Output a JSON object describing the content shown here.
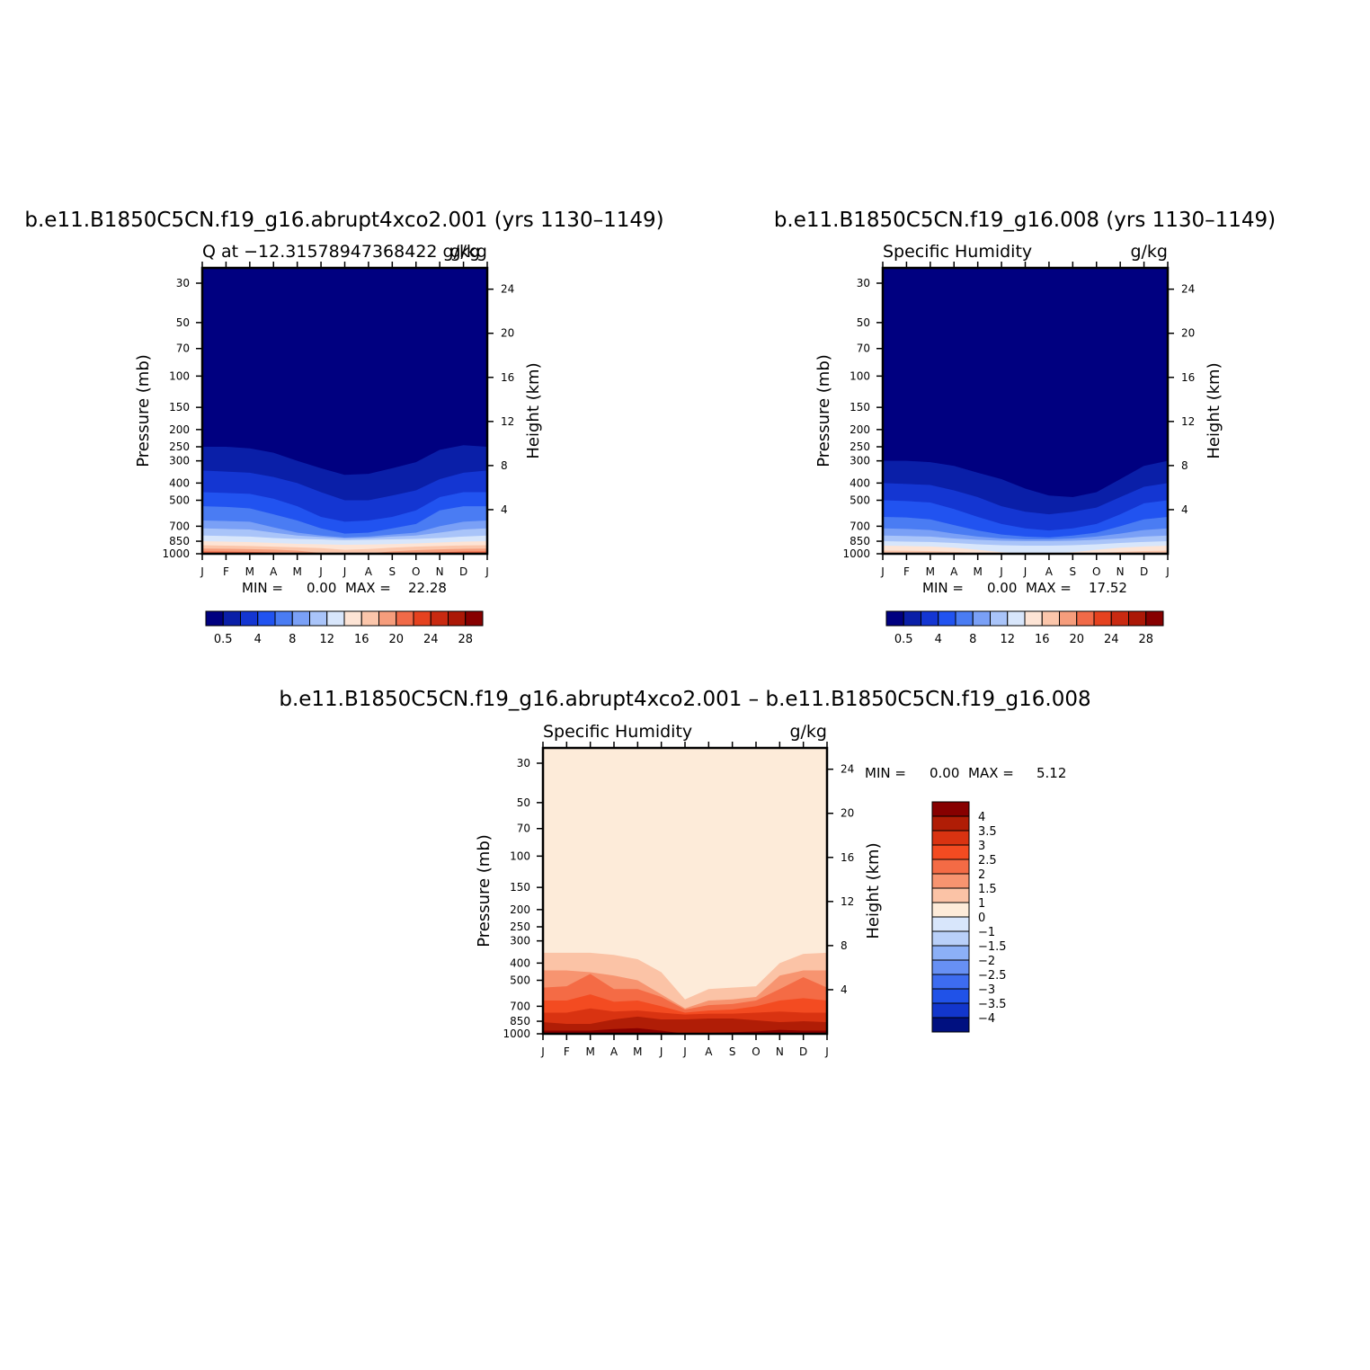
{
  "chart_data": [
    {
      "type": "heatmap",
      "title": "b.e11.B1850C5CN.f19_g16.abrupt4xco2.001 (yrs 1130–1149)",
      "left_string": "Q at −12.31578947368422 g/kg",
      "right_string": "g/kg",
      "ylabel": "Pressure (mb)",
      "ylabel_right": "Height (km)",
      "x_ticks": [
        "J",
        "F",
        "M",
        "A",
        "M",
        "J",
        "J",
        "A",
        "S",
        "O",
        "N",
        "D",
        "J"
      ],
      "y_ticks": [
        "30",
        "50",
        "70",
        "100",
        "150",
        "200",
        "250",
        "300",
        "400",
        "500",
        "700",
        "850",
        "1000"
      ],
      "y_values": [
        30,
        50,
        70,
        100,
        150,
        200,
        250,
        300,
        400,
        500,
        700,
        850,
        1000
      ],
      "y_right_ticks": [
        "24",
        "20",
        "16",
        "12",
        "8",
        "4"
      ],
      "y_right_values": [
        24,
        20,
        16,
        12,
        8,
        4
      ],
      "min_label": "MIN =",
      "min_value": "0.00",
      "max_label": "MAX =",
      "max_value": "22.28",
      "colorbar_labels": [
        "0.5",
        "4",
        "8",
        "12",
        "16",
        "20",
        "24",
        "28"
      ],
      "boundaries_pressure": [
        [
          250,
          250,
          255,
          270,
          300,
          330,
          360,
          355,
          330,
          305,
          260,
          245,
          250
        ],
        [
          340,
          345,
          350,
          370,
          400,
          450,
          500,
          500,
          470,
          440,
          380,
          350,
          340
        ],
        [
          450,
          455,
          460,
          490,
          540,
          620,
          660,
          650,
          620,
          570,
          480,
          450,
          450
        ],
        [
          540,
          545,
          555,
          600,
          650,
          720,
          770,
          760,
          720,
          680,
          570,
          540,
          540
        ],
        [
          650,
          655,
          660,
          710,
          760,
          790,
          810,
          800,
          780,
          760,
          700,
          660,
          650
        ],
        [
          720,
          725,
          730,
          760,
          790,
          805,
          820,
          815,
          800,
          790,
          760,
          730,
          720
        ],
        [
          790,
          795,
          800,
          815,
          825,
          830,
          840,
          835,
          830,
          825,
          815,
          800,
          790
        ],
        [
          850,
          855,
          860,
          870,
          880,
          885,
          890,
          888,
          882,
          875,
          865,
          855,
          850
        ],
        [
          895,
          900,
          905,
          912,
          920,
          930,
          950,
          940,
          925,
          912,
          905,
          898,
          895
        ],
        [
          935,
          938,
          942,
          948,
          960,
          990,
          1000,
          995,
          970,
          955,
          945,
          938,
          935
        ],
        [
          970,
          972,
          975,
          982,
          995,
          1000,
          1000,
          1000,
          1000,
          992,
          980,
          972,
          970
        ]
      ]
    },
    {
      "type": "heatmap",
      "title": "b.e11.B1850C5CN.f19_g16.008 (yrs 1130–1149)",
      "left_string": "Specific Humidity",
      "right_string": "g/kg",
      "ylabel": "Pressure (mb)",
      "ylabel_right": "Height (km)",
      "x_ticks": [
        "J",
        "F",
        "M",
        "A",
        "M",
        "J",
        "J",
        "A",
        "S",
        "O",
        "N",
        "D",
        "J"
      ],
      "y_ticks": [
        "30",
        "50",
        "70",
        "100",
        "150",
        "200",
        "250",
        "300",
        "400",
        "500",
        "700",
        "850",
        "1000"
      ],
      "y_values": [
        30,
        50,
        70,
        100,
        150,
        200,
        250,
        300,
        400,
        500,
        700,
        850,
        1000
      ],
      "y_right_ticks": [
        "24",
        "20",
        "16",
        "12",
        "8",
        "4"
      ],
      "y_right_values": [
        24,
        20,
        16,
        12,
        8,
        4
      ],
      "min_label": "MIN =",
      "min_value": "0.00",
      "max_label": "MAX =",
      "max_value": "17.52",
      "colorbar_labels": [
        "0.5",
        "4",
        "8",
        "12",
        "16",
        "20",
        "24",
        "28"
      ],
      "boundaries_pressure": [
        [
          300,
          300,
          305,
          320,
          350,
          380,
          430,
          470,
          480,
          450,
          380,
          320,
          300
        ],
        [
          400,
          405,
          410,
          440,
          480,
          540,
          580,
          600,
          580,
          550,
          480,
          420,
          400
        ],
        [
          500,
          505,
          515,
          560,
          620,
          680,
          720,
          740,
          720,
          680,
          600,
          520,
          500
        ],
        [
          620,
          625,
          640,
          690,
          740,
          780,
          800,
          810,
          790,
          760,
          700,
          640,
          620
        ],
        [
          720,
          725,
          735,
          770,
          800,
          820,
          830,
          830,
          820,
          800,
          770,
          735,
          720
        ],
        [
          790,
          795,
          800,
          820,
          835,
          845,
          850,
          850,
          845,
          835,
          820,
          800,
          790
        ],
        [
          850,
          855,
          858,
          870,
          885,
          895,
          900,
          900,
          895,
          885,
          870,
          858,
          850
        ],
        [
          900,
          905,
          910,
          925,
          950,
          980,
          1000,
          1000,
          980,
          950,
          925,
          910,
          900
        ],
        [
          960,
          962,
          965,
          975,
          990,
          1000,
          1000,
          1000,
          1000,
          990,
          975,
          965,
          960
        ],
        [
          990,
          992,
          995,
          1000,
          1000,
          1000,
          1000,
          1000,
          1000,
          1000,
          998,
          993,
          990
        ]
      ]
    },
    {
      "type": "heatmap",
      "title": "b.e11.B1850C5CN.f19_g16.abrupt4xco2.001 – b.e11.B1850C5CN.f19_g16.008",
      "left_string": "Specific Humidity",
      "right_string": "g/kg",
      "ylabel": "Pressure (mb)",
      "ylabel_right": "Height (km)",
      "x_ticks": [
        "J",
        "F",
        "M",
        "A",
        "M",
        "J",
        "J",
        "A",
        "S",
        "O",
        "N",
        "D",
        "J"
      ],
      "y_ticks": [
        "30",
        "50",
        "70",
        "100",
        "150",
        "200",
        "250",
        "300",
        "400",
        "500",
        "700",
        "850",
        "1000"
      ],
      "y_values": [
        30,
        50,
        70,
        100,
        150,
        200,
        250,
        300,
        400,
        500,
        700,
        850,
        1000
      ],
      "y_right_ticks": [
        "24",
        "20",
        "16",
        "12",
        "8",
        "4"
      ],
      "y_right_values": [
        24,
        20,
        16,
        12,
        8,
        4
      ],
      "min_label": "MIN =",
      "min_value": "0.00",
      "max_label": "MAX =",
      "max_value": "5.12",
      "colorbar_labels": [
        "4",
        "3.5",
        "3",
        "2.5",
        "2",
        "1.5",
        "1",
        "0",
        "−1",
        "−1.5",
        "−2",
        "−2.5",
        "−3",
        "−3.5",
        "−4"
      ],
      "boundaries_pressure": [
        [
          350,
          350,
          350,
          360,
          380,
          450,
          640,
          560,
          550,
          540,
          400,
          355,
          350
        ],
        [
          440,
          440,
          450,
          470,
          500,
          600,
          720,
          650,
          640,
          620,
          470,
          440,
          440
        ],
        [
          550,
          540,
          460,
          560,
          560,
          620,
          730,
          690,
          680,
          650,
          560,
          480,
          550
        ],
        [
          650,
          650,
          600,
          660,
          650,
          700,
          760,
          740,
          730,
          700,
          650,
          630,
          650
        ],
        [
          760,
          760,
          720,
          750,
          740,
          760,
          780,
          770,
          770,
          760,
          750,
          760,
          760
        ],
        [
          860,
          880,
          880,
          830,
          800,
          830,
          830,
          820,
          820,
          840,
          860,
          850,
          860
        ],
        [
          960,
          960,
          960,
          940,
          930,
          960,
          1000,
          990,
          980,
          970,
          950,
          960,
          960
        ]
      ]
    }
  ],
  "colors": {
    "abs_scale": [
      "#000080",
      "#0a1fa8",
      "#1436d2",
      "#2153f0",
      "#4a7cf3",
      "#7aa0f6",
      "#a9c4f9",
      "#d8e6fb",
      "#fde4d5",
      "#fbc6ab",
      "#f69d7c",
      "#f16a48",
      "#e5421f",
      "#c92a11",
      "#ab1806",
      "#870000"
    ],
    "diff_scale": [
      "#870000",
      "#b01d06",
      "#d93311",
      "#f34b21",
      "#f46b45",
      "#f79470",
      "#fbc3a6",
      "#fdebd9",
      "#d8e6fb",
      "#b9d0f9",
      "#8cb0f7",
      "#6790f4",
      "#3d6cf0",
      "#2052e8",
      "#1236cc",
      "#001080"
    ]
  }
}
